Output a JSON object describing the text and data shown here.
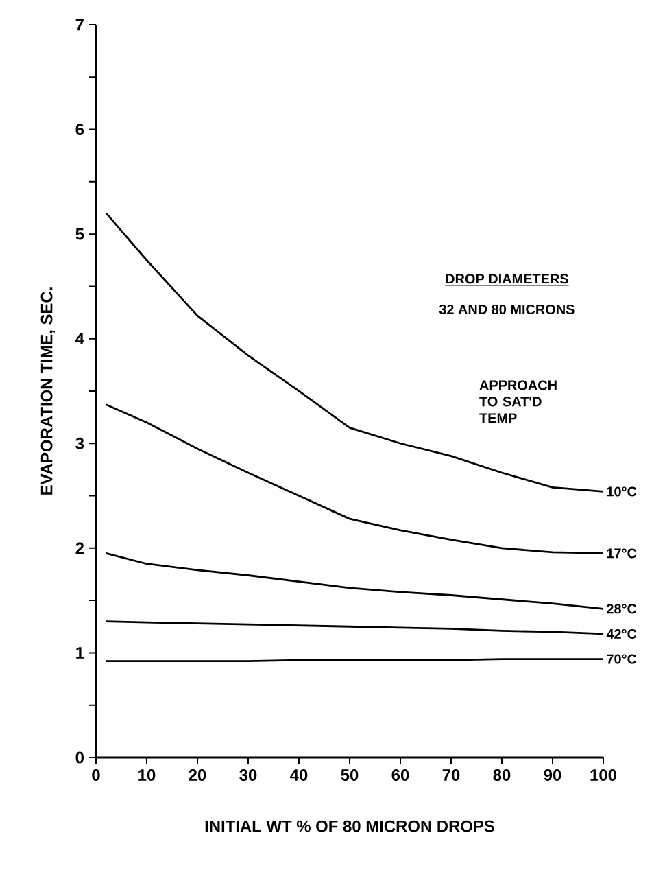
{
  "chart_data": {
    "type": "line",
    "xlabel": "INITIAL WT % OF 80 MICRON DROPS",
    "ylabel": "EVAPORATION TIME, SEC.",
    "x": [
      2,
      10,
      20,
      30,
      40,
      50,
      60,
      70,
      80,
      90,
      100
    ],
    "series": [
      {
        "name": "10°C",
        "color": "#000000",
        "values": [
          5.2,
          4.75,
          4.22,
          3.84,
          3.5,
          3.15,
          3.0,
          2.88,
          2.72,
          2.58,
          2.54
        ]
      },
      {
        "name": "17°C",
        "color": "#000000",
        "values": [
          3.37,
          3.2,
          2.95,
          2.72,
          2.5,
          2.28,
          2.17,
          2.08,
          2.0,
          1.96,
          1.95
        ]
      },
      {
        "name": "28°C",
        "color": "#000000",
        "values": [
          1.95,
          1.85,
          1.79,
          1.74,
          1.68,
          1.62,
          1.58,
          1.55,
          1.51,
          1.47,
          1.42
        ]
      },
      {
        "name": "42°C",
        "color": "#000000",
        "values": [
          1.3,
          1.29,
          1.28,
          1.27,
          1.26,
          1.25,
          1.24,
          1.23,
          1.21,
          1.2,
          1.18
        ]
      },
      {
        "name": "70°C",
        "color": "#000000",
        "values": [
          0.92,
          0.92,
          0.92,
          0.92,
          0.93,
          0.93,
          0.93,
          0.93,
          0.94,
          0.94,
          0.94
        ]
      }
    ],
    "xlim": [
      0,
      100
    ],
    "xticks": [
      0,
      10,
      20,
      30,
      40,
      50,
      60,
      70,
      80,
      90,
      100
    ],
    "ylim": [
      0,
      7
    ],
    "yticks": [
      0,
      {
        "value": 0.5,
        "label": null
      },
      1,
      {
        "value": 1.5,
        "label": null
      },
      2,
      {
        "value": 2.5,
        "label": null
      },
      3,
      {
        "value": 3.5,
        "label": null
      },
      4,
      {
        "value": 4.5,
        "label": null
      },
      5,
      {
        "value": 5.5,
        "label": null
      },
      6,
      {
        "value": 6.5,
        "label": null
      },
      7
    ],
    "marker": "none",
    "line_style": "solid",
    "annotations": [
      "DROP DIAMETERS",
      "32 AND 80 MICRONS",
      "APPROACH TO SAT'D TEMP"
    ]
  }
}
